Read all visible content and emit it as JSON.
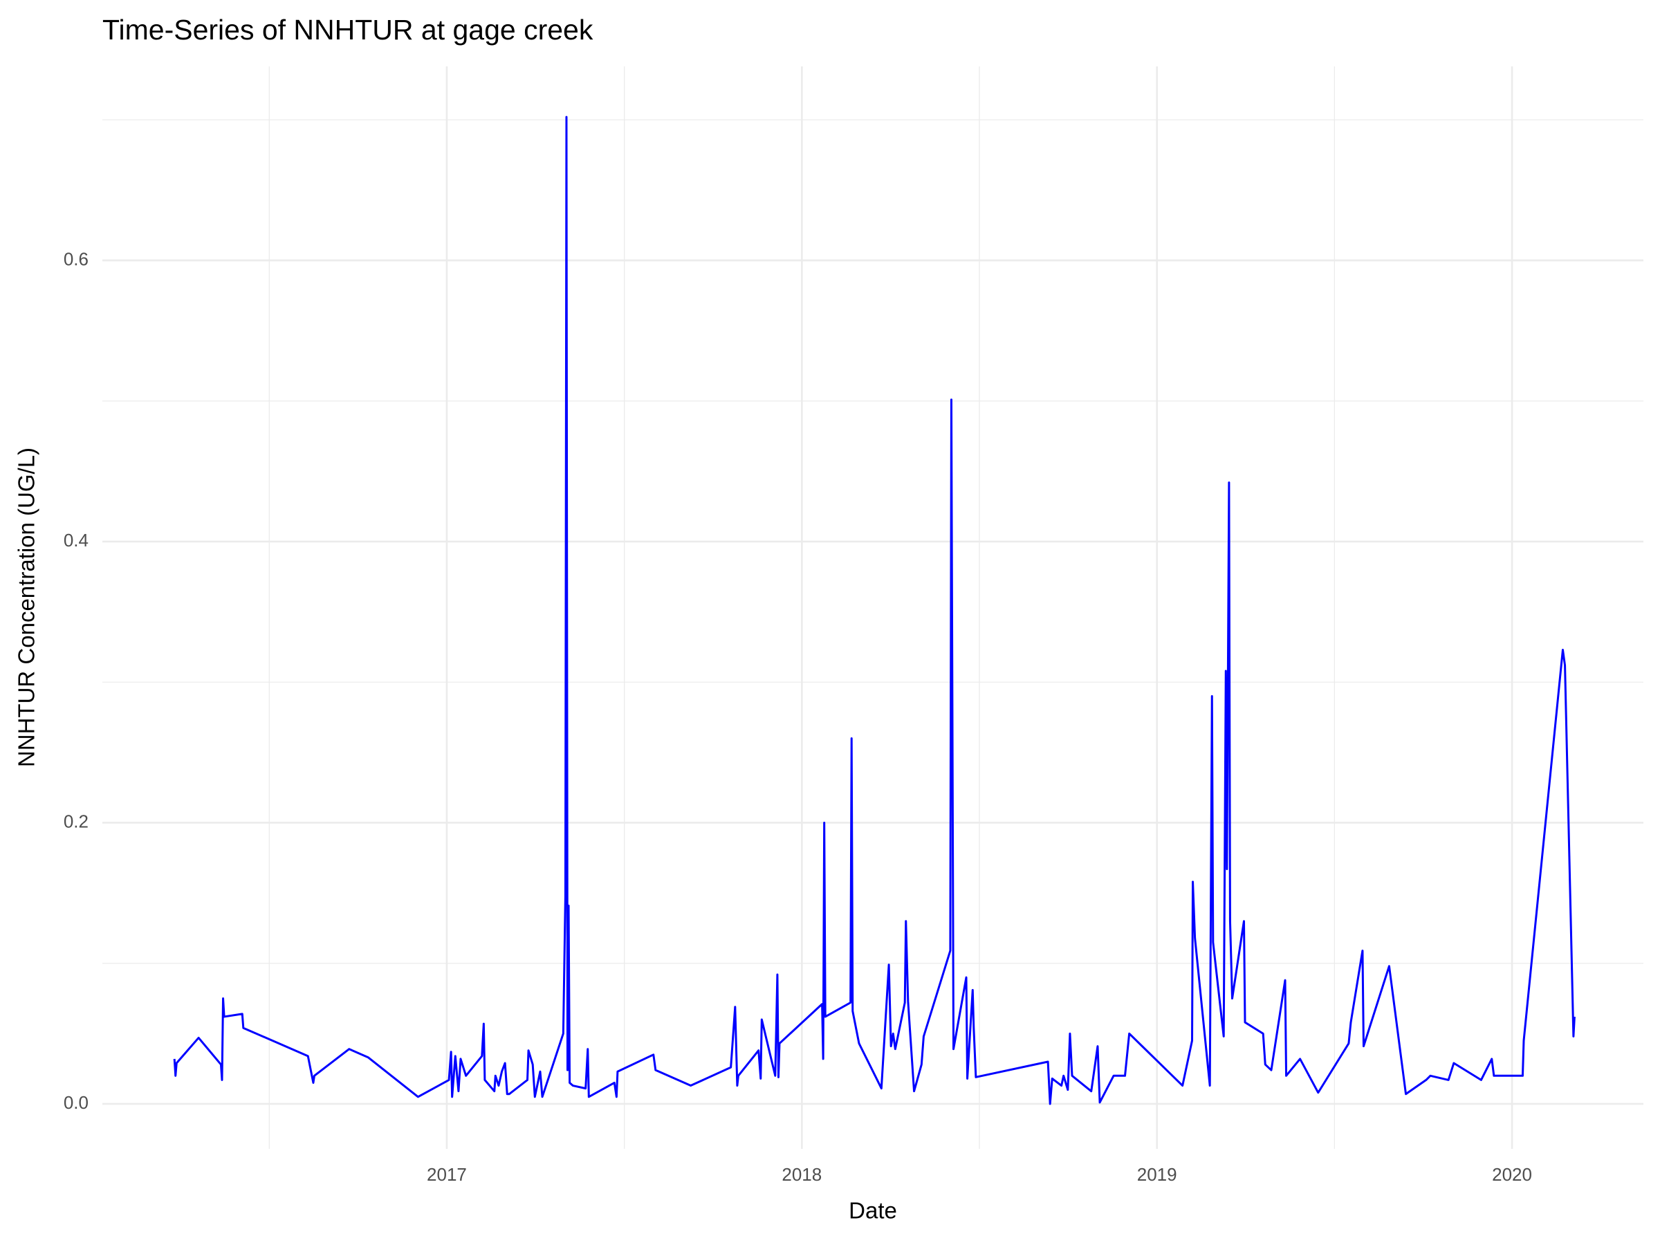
{
  "chart_data": {
    "type": "line",
    "title": "Time-Series of NNHTUR at gage creek",
    "x_label": "Date",
    "y_label": "NNHTUR Concentration (UG/L)",
    "color": "#0000ff",
    "grid": true,
    "xlim": [
      2016.03,
      2020.37
    ],
    "xticks": [
      2017,
      2018,
      2019,
      2020
    ],
    "x_minor_ticks": [
      2016.5,
      2017.5,
      2018.5,
      2019.5
    ],
    "ylim": [
      -0.032,
      0.738
    ],
    "yticks": [
      {
        "value": 0,
        "label": "0.0"
      },
      0.2,
      0.4,
      0.6
    ],
    "y_minor_ticks": [
      0.1,
      0.3,
      0.5,
      0.7
    ],
    "x": [
      2016.233,
      2016.236,
      2016.239,
      2016.301,
      2016.364,
      2016.367,
      2016.37,
      2016.373,
      2016.424,
      2016.427,
      2016.609,
      2016.624,
      2016.627,
      2016.725,
      2016.779,
      2016.919,
      2017.006,
      2017.012,
      2017.015,
      2017.024,
      2017.033,
      2017.039,
      2017.054,
      2017.099,
      2017.104,
      2017.107,
      2017.134,
      2017.137,
      2017.146,
      2017.155,
      2017.164,
      2017.17,
      2017.176,
      2017.227,
      2017.23,
      2017.242,
      2017.248,
      2017.263,
      2017.269,
      2017.328,
      2017.334,
      2017.337,
      2017.34,
      2017.343,
      2017.346,
      2017.355,
      2017.391,
      2017.397,
      2017.4,
      2017.472,
      2017.478,
      2017.481,
      2017.582,
      2017.588,
      2017.687,
      2017.8,
      2017.812,
      2017.818,
      2017.821,
      2017.878,
      2017.884,
      2017.887,
      2017.925,
      2017.931,
      2017.934,
      2017.937,
      2018.057,
      2018.06,
      2018.063,
      2018.066,
      2018.137,
      2018.14,
      2018.143,
      2018.161,
      2018.224,
      2018.245,
      2018.251,
      2018.257,
      2018.263,
      2018.29,
      2018.293,
      2018.299,
      2018.316,
      2018.337,
      2018.343,
      2018.418,
      2018.421,
      2018.427,
      2018.463,
      2018.466,
      2018.481,
      2018.484,
      2018.49,
      2018.693,
      2018.699,
      2018.705,
      2018.731,
      2018.737,
      2018.749,
      2018.755,
      2018.761,
      2018.815,
      2018.833,
      2018.839,
      2018.878,
      2018.91,
      2018.922,
      2019.072,
      2019.099,
      2019.101,
      2019.107,
      2019.149,
      2019.155,
      2019.158,
      2019.188,
      2019.194,
      2019.197,
      2019.203,
      2019.206,
      2019.212,
      2019.245,
      2019.248,
      2019.299,
      2019.305,
      2019.322,
      2019.361,
      2019.364,
      2019.403,
      2019.454,
      2019.54,
      2019.546,
      2019.579,
      2019.582,
      2019.654,
      2019.701,
      2019.758,
      2019.77,
      2019.821,
      2019.836,
      2019.913,
      2019.943,
      2019.949,
      2020.03,
      2020.033,
      2020.143,
      2020.149,
      2020.173,
      2020.176
    ],
    "values": [
      0.032,
      0.02,
      0.029,
      0.047,
      0.028,
      0.017,
      0.075,
      0.062,
      0.064,
      0.054,
      0.034,
      0.015,
      0.02,
      0.039,
      0.033,
      0.005,
      0.017,
      0.037,
      0.005,
      0.034,
      0.009,
      0.032,
      0.02,
      0.034,
      0.057,
      0.017,
      0.009,
      0.02,
      0.013,
      0.023,
      0.029,
      0.007,
      0.007,
      0.017,
      0.038,
      0.028,
      0.005,
      0.023,
      0.005,
      0.05,
      0.148,
      0.702,
      0.024,
      0.141,
      0.015,
      0.013,
      0.011,
      0.039,
      0.005,
      0.015,
      0.005,
      0.023,
      0.035,
      0.024,
      0.013,
      0.026,
      0.069,
      0.013,
      0.02,
      0.038,
      0.018,
      0.06,
      0.02,
      0.092,
      0.019,
      0.043,
      0.071,
      0.032,
      0.2,
      0.062,
      0.072,
      0.26,
      0.066,
      0.043,
      0.011,
      0.099,
      0.041,
      0.05,
      0.039,
      0.072,
      0.13,
      0.073,
      0.009,
      0.028,
      0.048,
      0.109,
      0.501,
      0.039,
      0.09,
      0.018,
      0.081,
      0.054,
      0.019,
      0.03,
      0.0,
      0.018,
      0.013,
      0.02,
      0.01,
      0.05,
      0.02,
      0.009,
      0.041,
      0.001,
      0.02,
      0.02,
      0.05,
      0.013,
      0.045,
      0.158,
      0.118,
      0.013,
      0.29,
      0.115,
      0.048,
      0.308,
      0.167,
      0.442,
      0.13,
      0.075,
      0.13,
      0.058,
      0.05,
      0.028,
      0.024,
      0.088,
      0.02,
      0.032,
      0.008,
      0.043,
      0.058,
      0.109,
      0.041,
      0.098,
      0.007,
      0.017,
      0.02,
      0.017,
      0.029,
      0.017,
      0.032,
      0.02,
      0.02,
      0.045,
      0.323,
      0.312,
      0.048,
      0.062
    ]
  }
}
